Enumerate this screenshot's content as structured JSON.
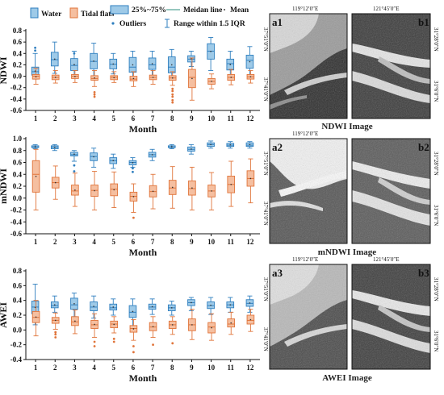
{
  "legend": {
    "water": "Water",
    "tidal": "Tidal flats",
    "iqr": "25%~75%",
    "median": "Meidan line",
    "mean": "Mean",
    "outliers": "Outliers",
    "range": "Range within 1.5 IQR"
  },
  "colors": {
    "water_fill": "#9ecae8",
    "water_stroke": "#2f7fbf",
    "tidal_fill": "#f5bfa0",
    "tidal_stroke": "#e0743a"
  },
  "chart_data": [
    {
      "type": "box",
      "ylabel": "NDWI",
      "xlabel": "Month",
      "ylim": [
        -0.6,
        0.8
      ],
      "yticks": [
        "0.8",
        "0.6",
        "0.4",
        "0.2",
        "0.0",
        "-0.2",
        "-0.4",
        "-0.6"
      ],
      "categories": [
        "1",
        "2",
        "3",
        "4",
        "5",
        "6",
        "7",
        "8",
        "9",
        "10",
        "11",
        "12"
      ],
      "series": [
        {
          "name": "Water",
          "boxes": [
            {
              "q1": 0.02,
              "med": 0.08,
              "q3": 0.16,
              "lo": -0.05,
              "hi": 0.4,
              "out": [
                0.45,
                0.5
              ]
            },
            {
              "q1": 0.18,
              "med": 0.29,
              "q3": 0.42,
              "lo": 0.05,
              "hi": 0.6,
              "out": []
            },
            {
              "q1": 0.1,
              "med": 0.19,
              "q3": 0.31,
              "lo": -0.02,
              "hi": 0.44,
              "out": [
                0.4
              ]
            },
            {
              "q1": 0.13,
              "med": 0.26,
              "q3": 0.4,
              "lo": -0.01,
              "hi": 0.58,
              "out": []
            },
            {
              "q1": 0.13,
              "med": 0.21,
              "q3": 0.3,
              "lo": 0.04,
              "hi": 0.4,
              "out": []
            },
            {
              "q1": 0.07,
              "med": 0.16,
              "q3": 0.33,
              "lo": -0.05,
              "hi": 0.44,
              "out": []
            },
            {
              "q1": 0.12,
              "med": 0.2,
              "q3": 0.32,
              "lo": 0.0,
              "hi": 0.44,
              "out": []
            },
            {
              "q1": 0.06,
              "med": 0.16,
              "q3": 0.34,
              "lo": -0.06,
              "hi": 0.47,
              "out": []
            },
            {
              "q1": 0.25,
              "med": 0.3,
              "q3": 0.36,
              "lo": 0.17,
              "hi": 0.44,
              "out": []
            },
            {
              "q1": 0.3,
              "med": 0.44,
              "q3": 0.57,
              "lo": 0.1,
              "hi": 0.68,
              "out": []
            },
            {
              "q1": 0.11,
              "med": 0.22,
              "q3": 0.3,
              "lo": 0.0,
              "hi": 0.44,
              "out": []
            },
            {
              "q1": 0.14,
              "med": 0.28,
              "q3": 0.37,
              "lo": -0.01,
              "hi": 0.52,
              "out": []
            }
          ]
        },
        {
          "name": "Tidal flats",
          "boxes": [
            {
              "q1": -0.05,
              "med": 0.0,
              "q3": 0.03,
              "lo": -0.14,
              "hi": 0.14,
              "out": []
            },
            {
              "q1": -0.06,
              "med": -0.02,
              "q3": 0.02,
              "lo": -0.12,
              "hi": 0.1,
              "out": []
            },
            {
              "q1": -0.04,
              "med": 0.0,
              "q3": 0.03,
              "lo": -0.11,
              "hi": 0.1,
              "out": []
            },
            {
              "q1": -0.07,
              "med": -0.04,
              "q3": 0.01,
              "lo": -0.18,
              "hi": 0.1,
              "out": [
                -0.28,
                -0.32,
                -0.36
              ]
            },
            {
              "q1": -0.06,
              "med": -0.02,
              "q3": 0.01,
              "lo": -0.11,
              "hi": 0.08,
              "out": []
            },
            {
              "q1": -0.08,
              "med": -0.05,
              "q3": 0.0,
              "lo": -0.18,
              "hi": 0.08,
              "out": []
            },
            {
              "q1": -0.06,
              "med": -0.02,
              "q3": 0.02,
              "lo": -0.14,
              "hi": 0.1,
              "out": []
            },
            {
              "q1": -0.07,
              "med": -0.03,
              "q3": 0.01,
              "lo": -0.16,
              "hi": 0.08,
              "out": [
                -0.22,
                -0.26,
                -0.32,
                -0.36,
                -0.42,
                -0.46
              ]
            },
            {
              "q1": -0.2,
              "med": -0.02,
              "q3": 0.12,
              "lo": -0.42,
              "hi": 0.32,
              "out": []
            },
            {
              "q1": -0.14,
              "med": -0.09,
              "q3": -0.04,
              "lo": -0.22,
              "hi": 0.04,
              "out": []
            },
            {
              "q1": -0.07,
              "med": -0.02,
              "q3": 0.03,
              "lo": -0.15,
              "hi": 0.12,
              "out": []
            },
            {
              "q1": -0.05,
              "med": -0.01,
              "q3": 0.03,
              "lo": -0.12,
              "hi": 0.1,
              "out": []
            }
          ]
        }
      ]
    },
    {
      "type": "box",
      "ylabel": "mNDWI",
      "xlabel": "Month",
      "ylim": [
        -0.6,
        1.0
      ],
      "yticks": [
        "1.0",
        "0.8",
        "0.6",
        "0.4",
        "0.2",
        "0.0",
        "-0.2",
        "-0.4",
        "-0.6"
      ],
      "categories": [
        "1",
        "2",
        "3",
        "4",
        "5",
        "6",
        "7",
        "8",
        "9",
        "10",
        "11",
        "12"
      ],
      "series": [
        {
          "name": "Water",
          "boxes": [
            {
              "q1": 0.85,
              "med": 0.86,
              "q3": 0.88,
              "lo": 0.83,
              "hi": 0.9,
              "out": []
            },
            {
              "q1": 0.83,
              "med": 0.86,
              "q3": 0.88,
              "lo": 0.8,
              "hi": 0.9,
              "out": []
            },
            {
              "q1": 0.71,
              "med": 0.73,
              "q3": 0.77,
              "lo": 0.62,
              "hi": 0.8,
              "out": [
                0.55,
                0.45
              ]
            },
            {
              "q1": 0.63,
              "med": 0.7,
              "q3": 0.76,
              "lo": 0.52,
              "hi": 0.84,
              "out": []
            },
            {
              "q1": 0.58,
              "med": 0.63,
              "q3": 0.68,
              "lo": 0.5,
              "hi": 0.74,
              "out": []
            },
            {
              "q1": 0.56,
              "med": 0.6,
              "q3": 0.63,
              "lo": 0.52,
              "hi": 0.68,
              "out": [
                0.5,
                0.44
              ]
            },
            {
              "q1": 0.69,
              "med": 0.73,
              "q3": 0.77,
              "lo": 0.63,
              "hi": 0.82,
              "out": []
            },
            {
              "q1": 0.85,
              "med": 0.86,
              "q3": 0.88,
              "lo": 0.83,
              "hi": 0.9,
              "out": []
            },
            {
              "q1": 0.79,
              "med": 0.82,
              "q3": 0.86,
              "lo": 0.74,
              "hi": 0.9,
              "out": []
            },
            {
              "q1": 0.87,
              "med": 0.9,
              "q3": 0.93,
              "lo": 0.84,
              "hi": 0.96,
              "out": []
            },
            {
              "q1": 0.87,
              "med": 0.89,
              "q3": 0.92,
              "lo": 0.84,
              "hi": 0.95,
              "out": []
            },
            {
              "q1": 0.87,
              "med": 0.89,
              "q3": 0.93,
              "lo": 0.84,
              "hi": 0.95,
              "out": []
            }
          ]
        },
        {
          "name": "Tidal flats",
          "boxes": [
            {
              "q1": 0.1,
              "med": 0.4,
              "q3": 0.63,
              "lo": -0.2,
              "hi": 0.82,
              "out": []
            },
            {
              "q1": 0.17,
              "med": 0.26,
              "q3": 0.35,
              "lo": -0.02,
              "hi": 0.54,
              "out": []
            },
            {
              "q1": 0.05,
              "med": 0.12,
              "q3": 0.22,
              "lo": -0.14,
              "hi": 0.42,
              "out": []
            },
            {
              "q1": 0.03,
              "med": 0.13,
              "q3": 0.22,
              "lo": -0.2,
              "hi": 0.45,
              "out": []
            },
            {
              "q1": 0.04,
              "med": 0.15,
              "q3": 0.24,
              "lo": -0.16,
              "hi": 0.44,
              "out": []
            },
            {
              "q1": -0.05,
              "med": 0.03,
              "q3": 0.1,
              "lo": -0.24,
              "hi": 0.24,
              "out": [
                -0.33
              ]
            },
            {
              "q1": 0.02,
              "med": 0.11,
              "q3": 0.21,
              "lo": -0.18,
              "hi": 0.4,
              "out": []
            },
            {
              "q1": 0.06,
              "med": 0.17,
              "q3": 0.3,
              "lo": -0.17,
              "hi": 0.53,
              "out": []
            },
            {
              "q1": 0.05,
              "med": 0.16,
              "q3": 0.29,
              "lo": -0.2,
              "hi": 0.52,
              "out": []
            },
            {
              "q1": 0.02,
              "med": 0.12,
              "q3": 0.22,
              "lo": -0.2,
              "hi": 0.43,
              "out": []
            },
            {
              "q1": 0.09,
              "med": 0.23,
              "q3": 0.37,
              "lo": -0.14,
              "hi": 0.62,
              "out": []
            },
            {
              "q1": 0.2,
              "med": 0.33,
              "q3": 0.46,
              "lo": -0.08,
              "hi": 0.66,
              "out": []
            }
          ]
        }
      ]
    },
    {
      "type": "box",
      "ylabel": "AWEI",
      "xlabel": "Month",
      "ylim": [
        -0.4,
        0.8
      ],
      "yticks": [
        "0.8",
        "0.6",
        "0.4",
        "0.2",
        "0.0",
        "-0.2",
        "-0.4"
      ],
      "categories": [
        "1",
        "2",
        "3",
        "4",
        "5",
        "6",
        "7",
        "8",
        "9",
        "10",
        "11",
        "12"
      ],
      "series": [
        {
          "name": "Water",
          "boxes": [
            {
              "q1": 0.22,
              "med": 0.31,
              "q3": 0.39,
              "lo": 0.07,
              "hi": 0.62,
              "out": []
            },
            {
              "q1": 0.3,
              "med": 0.33,
              "q3": 0.38,
              "lo": 0.24,
              "hi": 0.46,
              "out": []
            },
            {
              "q1": 0.28,
              "med": 0.34,
              "q3": 0.43,
              "lo": 0.18,
              "hi": 0.5,
              "out": []
            },
            {
              "q1": 0.26,
              "med": 0.31,
              "q3": 0.38,
              "lo": 0.16,
              "hi": 0.46,
              "out": []
            },
            {
              "q1": 0.27,
              "med": 0.3,
              "q3": 0.35,
              "lo": 0.2,
              "hi": 0.42,
              "out": []
            },
            {
              "q1": 0.17,
              "med": 0.24,
              "q3": 0.33,
              "lo": 0.05,
              "hi": 0.42,
              "out": []
            },
            {
              "q1": 0.28,
              "med": 0.31,
              "q3": 0.35,
              "lo": 0.21,
              "hi": 0.42,
              "out": []
            },
            {
              "q1": 0.26,
              "med": 0.3,
              "q3": 0.34,
              "lo": 0.2,
              "hi": 0.39,
              "out": []
            },
            {
              "q1": 0.33,
              "med": 0.37,
              "q3": 0.41,
              "lo": 0.26,
              "hi": 0.44,
              "out": []
            },
            {
              "q1": 0.29,
              "med": 0.33,
              "q3": 0.38,
              "lo": 0.21,
              "hi": 0.44,
              "out": []
            },
            {
              "q1": 0.3,
              "med": 0.34,
              "q3": 0.38,
              "lo": 0.24,
              "hi": 0.44,
              "out": []
            },
            {
              "q1": 0.32,
              "med": 0.36,
              "q3": 0.41,
              "lo": 0.24,
              "hi": 0.46,
              "out": []
            }
          ]
        },
        {
          "name": "Tidal flats",
          "boxes": [
            {
              "q1": 0.1,
              "med": 0.17,
              "q3": 0.25,
              "lo": -0.08,
              "hi": 0.4,
              "out": []
            },
            {
              "q1": 0.09,
              "med": 0.13,
              "q3": 0.17,
              "lo": 0.01,
              "hi": 0.23,
              "out": [
                -0.03,
                -0.06,
                -0.1
              ]
            },
            {
              "q1": 0.06,
              "med": 0.11,
              "q3": 0.18,
              "lo": -0.05,
              "hi": 0.27,
              "out": []
            },
            {
              "q1": 0.02,
              "med": 0.07,
              "q3": 0.13,
              "lo": -0.1,
              "hi": 0.22,
              "out": [
                -0.16,
                -0.22
              ]
            },
            {
              "q1": 0.03,
              "med": 0.08,
              "q3": 0.12,
              "lo": -0.04,
              "hi": 0.18,
              "out": [
                -0.12,
                -0.16
              ]
            },
            {
              "q1": -0.03,
              "med": 0.02,
              "q3": 0.06,
              "lo": -0.14,
              "hi": 0.14,
              "out": [
                -0.22,
                -0.3
              ]
            },
            {
              "q1": -0.01,
              "med": 0.04,
              "q3": 0.1,
              "lo": -0.1,
              "hi": 0.18,
              "out": [
                -0.2
              ]
            },
            {
              "q1": 0.02,
              "med": 0.07,
              "q3": 0.12,
              "lo": -0.06,
              "hi": 0.18,
              "out": [
                -0.18
              ]
            },
            {
              "q1": -0.01,
              "med": 0.07,
              "q3": 0.15,
              "lo": -0.13,
              "hi": 0.28,
              "out": []
            },
            {
              "q1": -0.04,
              "med": 0.04,
              "q3": 0.1,
              "lo": -0.14,
              "hi": 0.22,
              "out": []
            },
            {
              "q1": 0.04,
              "med": 0.08,
              "q3": 0.15,
              "lo": -0.06,
              "hi": 0.24,
              "out": []
            },
            {
              "q1": 0.08,
              "med": 0.13,
              "q3": 0.2,
              "lo": -0.02,
              "hi": 0.28,
              "out": []
            }
          ]
        }
      ]
    }
  ],
  "images": {
    "ndwi_title": "NDWI Image",
    "mndwi_title": "mNDWI Image",
    "awei_title": "AWEI Image",
    "panels": [
      {
        "label": "a1",
        "lon": "119°12′0″E",
        "lat_top": "37°51′0″N",
        "lat_bot": "37°41′0″N"
      },
      {
        "label": "b1",
        "lon": "121°45′0″E",
        "lat_top": "31°28′0″N",
        "lat_bot": "31°6′0″N"
      },
      {
        "label": "a2",
        "lon": "119°12′0″E",
        "lat_top": "37°51′0″N",
        "lat_bot": "37°41′0″N"
      },
      {
        "label": "b2",
        "lon": "121°45′0″E",
        "lat_top": "31°28′0″N",
        "lat_bot": "31°6′0″N"
      },
      {
        "label": "a3",
        "lon": "119°12′0″E",
        "lat_top": "37°51′0″N",
        "lat_bot": "37°41′0″N"
      },
      {
        "label": "b3",
        "lon": "121°45′0″E",
        "lat_top": "31°28′0″N",
        "lat_bot": "31°6′0″N"
      }
    ]
  }
}
